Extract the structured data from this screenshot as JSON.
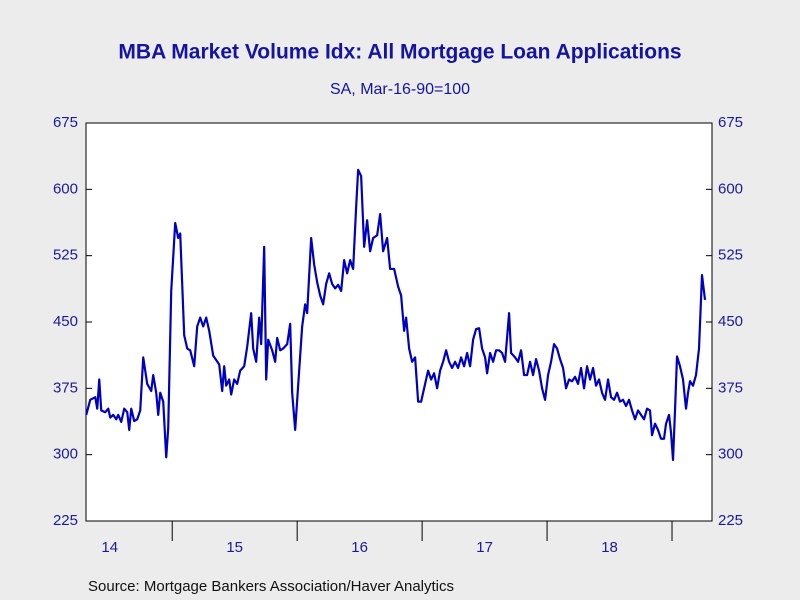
{
  "chart_data": {
    "type": "line",
    "title": "MBA Market Volume Idx: All Mortgage Loan Applications",
    "subtitle": "SA, Mar-16-90=100",
    "source": "Source:  Mortgage Bankers Association/Haver Analytics",
    "color": "#0000c0",
    "x": [
      2014.312,
      2014.344,
      2014.384,
      2014.4,
      2014.416,
      2014.432,
      2014.464,
      2014.488,
      2014.504,
      2014.528,
      2014.552,
      2014.568,
      2014.592,
      2014.616,
      2014.64,
      2014.656,
      2014.672,
      2014.696,
      2014.72,
      2014.744,
      2014.768,
      2014.8,
      2014.832,
      2014.848,
      2014.872,
      2014.888,
      2014.904,
      2014.928,
      2014.952,
      2014.968,
      2014.992,
      2015.024,
      2015.048,
      2015.064,
      2015.096,
      2015.12,
      2015.144,
      2015.176,
      2015.2,
      2015.224,
      2015.248,
      2015.272,
      2015.296,
      2015.328,
      2015.376,
      2015.4,
      2015.416,
      2015.432,
      2015.456,
      2015.472,
      2015.496,
      2015.52,
      2015.544,
      2015.576,
      2015.6,
      2015.632,
      2015.648,
      2015.672,
      2015.696,
      2015.712,
      2015.736,
      2015.752,
      2015.768,
      2015.8,
      2015.824,
      2015.84,
      2015.864,
      2015.888,
      2015.92,
      2015.944,
      2015.96,
      2015.984,
      2016.016,
      2016.04,
      2016.064,
      2016.08,
      2016.112,
      2016.136,
      2016.16,
      2016.184,
      2016.208,
      2016.232,
      2016.256,
      2016.28,
      2016.304,
      2016.328,
      2016.352,
      2016.376,
      2016.4,
      2016.424,
      2016.448,
      2016.472,
      2016.488,
      2016.512,
      2016.536,
      2016.56,
      2016.584,
      2016.608,
      2016.64,
      2016.664,
      2016.688,
      2016.72,
      2016.744,
      2016.776,
      2016.808,
      2016.832,
      2016.856,
      2016.872,
      2016.896,
      2016.92,
      2016.944,
      2016.968,
      2016.992,
      2017.024,
      2017.048,
      2017.072,
      2017.096,
      2017.12,
      2017.144,
      2017.168,
      2017.192,
      2017.216,
      2017.24,
      2017.264,
      2017.288,
      2017.312,
      2017.336,
      2017.36,
      2017.384,
      2017.408,
      2017.432,
      2017.456,
      2017.48,
      2017.504,
      2017.52,
      2017.544,
      2017.568,
      2017.592,
      2017.616,
      2017.64,
      2017.664,
      2017.696,
      2017.712,
      2017.744,
      2017.768,
      2017.792,
      2017.816,
      2017.84,
      2017.864,
      2017.888,
      2017.912,
      2017.936,
      2017.96,
      2017.984,
      2018.008,
      2018.032,
      2018.056,
      2018.08,
      2018.104,
      2018.128,
      2018.152,
      2018.176,
      2018.2,
      2018.224,
      2018.248,
      2018.272,
      2018.296,
      2018.32,
      2018.344,
      2018.368,
      2018.392,
      2018.416,
      2018.44,
      2018.464,
      2018.488,
      2018.512,
      2018.536,
      2018.56,
      2018.584,
      2018.608,
      2018.632,
      2018.656,
      2018.68,
      2018.704,
      2018.728,
      2018.752,
      2018.776,
      2018.8,
      2018.824,
      2018.84,
      2018.864,
      2018.888,
      2018.912,
      2018.936,
      2018.952,
      2018.976,
      2018.992,
      2019.008,
      2019.024,
      2019.04,
      2019.064,
      2019.088,
      2019.112,
      2019.128,
      2019.144,
      2019.168,
      2019.192,
      2019.216,
      2019.24,
      2019.264
    ],
    "values": [
      345,
      362,
      365,
      352,
      385,
      350,
      348,
      352,
      342,
      345,
      340,
      345,
      337,
      352,
      348,
      328,
      352,
      338,
      340,
      350,
      410,
      380,
      372,
      390,
      370,
      345,
      370,
      360,
      297,
      330,
      485,
      562,
      545,
      550,
      435,
      420,
      418,
      400,
      445,
      455,
      445,
      455,
      440,
      412,
      402,
      372,
      400,
      378,
      385,
      368,
      385,
      380,
      395,
      400,
      422,
      460,
      420,
      405,
      455,
      425,
      535,
      385,
      430,
      418,
      405,
      432,
      418,
      420,
      425,
      448,
      370,
      328,
      395,
      445,
      470,
      460,
      545,
      515,
      495,
      480,
      470,
      493,
      505,
      493,
      488,
      492,
      485,
      520,
      505,
      520,
      510,
      580,
      622,
      615,
      535,
      565,
      530,
      545,
      548,
      572,
      530,
      545,
      510,
      510,
      490,
      480,
      440,
      455,
      420,
      405,
      410,
      360,
      360,
      380,
      395,
      385,
      392,
      375,
      395,
      405,
      418,
      405,
      398,
      405,
      398,
      410,
      400,
      415,
      400,
      430,
      442,
      443,
      420,
      410,
      392,
      415,
      405,
      418,
      418,
      415,
      405,
      460,
      415,
      410,
      405,
      418,
      390,
      390,
      405,
      390,
      408,
      395,
      375,
      362,
      390,
      405,
      425,
      420,
      408,
      398,
      375,
      385,
      383,
      388,
      380,
      398,
      375,
      400,
      385,
      398,
      378,
      385,
      370,
      362,
      385,
      365,
      362,
      370,
      360,
      362,
      355,
      362,
      350,
      340,
      350,
      345,
      340,
      352,
      350,
      322,
      335,
      328,
      318,
      318,
      335,
      345,
      325,
      294,
      350,
      411,
      400,
      385,
      352,
      370,
      383,
      378,
      390,
      420,
      503,
      475
    ],
    "xlim": [
      2014.31,
      2019.32
    ],
    "xticks": [
      {
        "value": 2014.5,
        "label": "14"
      },
      {
        "value": 2015.5,
        "label": "15"
      },
      {
        "value": 2016.5,
        "label": "16"
      },
      {
        "value": 2017.5,
        "label": "17"
      },
      {
        "value": 2018.5,
        "label": "18"
      }
    ],
    "xminorticks": [
      2015,
      2016,
      2017,
      2018,
      2019
    ],
    "ylim": [
      225,
      675
    ],
    "yticks": [
      225,
      300,
      375,
      450,
      525,
      600,
      675
    ],
    "y2lim": [
      225,
      675
    ],
    "y2ticks": [
      225,
      300,
      375,
      450,
      525,
      600,
      675
    ]
  }
}
